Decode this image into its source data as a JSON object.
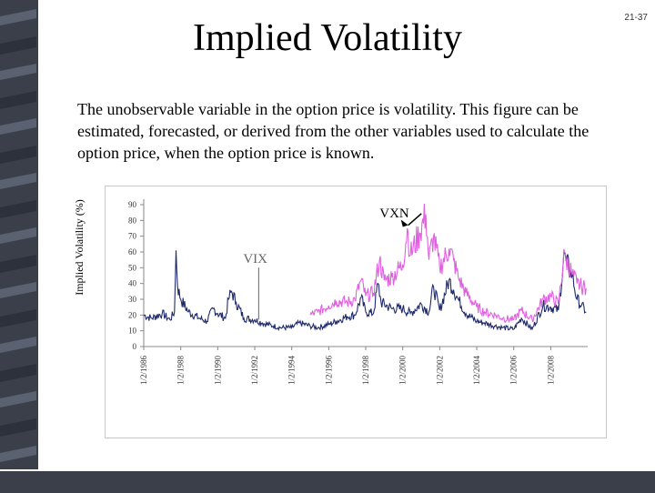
{
  "slide_number": "21-37",
  "title": "Implied Volatility",
  "body_text": "The unobservable variable in the option price is volatility. This figure can be estimated, forecasted, or derived from the other variables used to calculate the option price, when the option price is known.",
  "colors": {
    "sidebar": "#3a3f4a",
    "vix": "#1f2a6b",
    "vxn": "#e060e0"
  },
  "chart_data": {
    "type": "line",
    "title": "",
    "xlabel": "",
    "ylabel": "Implied Volatility (%)",
    "ylim": [
      0,
      90
    ],
    "yticks": [
      0,
      10,
      20,
      30,
      40,
      50,
      60,
      70,
      80,
      90
    ],
    "xlim": [
      "1986-01-02",
      "2009-12-31"
    ],
    "xticks": [
      "1/2/1986",
      "1/2/1988",
      "1/2/1990",
      "1/2/1992",
      "1/2/1994",
      "1/2/1996",
      "1/2/1998",
      "1/2/2000",
      "1/2/2002",
      "1/2/2004",
      "1/2/2006",
      "1/2/2008"
    ],
    "grid": false,
    "legend": "none",
    "annotations": [
      {
        "text": "VIX",
        "x": "1992-03",
        "y": 53
      },
      {
        "text": "VXN",
        "x": "1998-10",
        "y": 82
      }
    ],
    "series": [
      {
        "name": "VIX",
        "points": [
          [
            "1986-01",
            20
          ],
          [
            "1986-06",
            18
          ],
          [
            "1987-01",
            21
          ],
          [
            "1987-06",
            17
          ],
          [
            "1987-09",
            22
          ],
          [
            "1987-10",
            61
          ],
          [
            "1987-11",
            38
          ],
          [
            "1988-01",
            30
          ],
          [
            "1988-06",
            22
          ],
          [
            "1989-01",
            18
          ],
          [
            "1989-06",
            16
          ],
          [
            "1989-10",
            24
          ],
          [
            "1990-01",
            21
          ],
          [
            "1990-06",
            18
          ],
          [
            "1990-08",
            30
          ],
          [
            "1990-10",
            35
          ],
          [
            "1991-01",
            28
          ],
          [
            "1991-06",
            18
          ],
          [
            "1992-01",
            17
          ],
          [
            "1992-06",
            15
          ],
          [
            "1993-01",
            13
          ],
          [
            "1993-06",
            12
          ],
          [
            "1994-01",
            12
          ],
          [
            "1994-06",
            15
          ],
          [
            "1995-01",
            13
          ],
          [
            "1995-06",
            12
          ],
          [
            "1996-01",
            14
          ],
          [
            "1996-06",
            16
          ],
          [
            "1997-01",
            19
          ],
          [
            "1997-06",
            20
          ],
          [
            "1997-10",
            31
          ],
          [
            "1998-01",
            22
          ],
          [
            "1998-06",
            21
          ],
          [
            "1998-09",
            40
          ],
          [
            "1998-11",
            28
          ],
          [
            "1999-06",
            24
          ],
          [
            "2000-01",
            24
          ],
          [
            "2000-06",
            21
          ],
          [
            "2001-01",
            27
          ],
          [
            "2001-06",
            22
          ],
          [
            "2001-09",
            38
          ],
          [
            "2002-01",
            23
          ],
          [
            "2002-07",
            42
          ],
          [
            "2002-10",
            36
          ],
          [
            "2003-01",
            30
          ],
          [
            "2003-06",
            21
          ],
          [
            "2004-01",
            16
          ],
          [
            "2004-06",
            15
          ],
          [
            "2005-01",
            13
          ],
          [
            "2005-06",
            12
          ],
          [
            "2006-01",
            11
          ],
          [
            "2006-06",
            18
          ],
          [
            "2007-01",
            11
          ],
          [
            "2007-08",
            26
          ],
          [
            "2008-01",
            25
          ],
          [
            "2008-06",
            23
          ],
          [
            "2008-10",
            60
          ],
          [
            "2008-11",
            54
          ],
          [
            "2009-03",
            45
          ],
          [
            "2009-06",
            30
          ],
          [
            "2009-09",
            26
          ],
          [
            "2009-12",
            22
          ]
        ]
      },
      {
        "name": "VXN",
        "points": [
          [
            "1995-01",
            20
          ],
          [
            "1995-06",
            22
          ],
          [
            "1996-01",
            26
          ],
          [
            "1996-06",
            29
          ],
          [
            "1997-01",
            28
          ],
          [
            "1997-06",
            30
          ],
          [
            "1997-10",
            42
          ],
          [
            "1998-01",
            32
          ],
          [
            "1998-06",
            34
          ],
          [
            "1998-10",
            55
          ],
          [
            "1999-01",
            42
          ],
          [
            "1999-06",
            44
          ],
          [
            "2000-01",
            52
          ],
          [
            "2000-04",
            75
          ],
          [
            "2000-06",
            58
          ],
          [
            "2000-12",
            72
          ],
          [
            "2001-04",
            84
          ],
          [
            "2001-06",
            55
          ],
          [
            "2001-09",
            70
          ],
          [
            "2002-01",
            50
          ],
          [
            "2002-07",
            62
          ],
          [
            "2002-10",
            55
          ],
          [
            "2003-01",
            44
          ],
          [
            "2003-06",
            34
          ],
          [
            "2004-01",
            25
          ],
          [
            "2004-06",
            22
          ],
          [
            "2005-01",
            20
          ],
          [
            "2005-06",
            18
          ],
          [
            "2006-01",
            17
          ],
          [
            "2006-06",
            23
          ],
          [
            "2007-01",
            17
          ],
          [
            "2007-08",
            30
          ],
          [
            "2008-01",
            32
          ],
          [
            "2008-06",
            27
          ],
          [
            "2008-10",
            60
          ],
          [
            "2008-11",
            55
          ],
          [
            "2009-03",
            46
          ],
          [
            "2009-06",
            40
          ],
          [
            "2009-09",
            38
          ],
          [
            "2009-12",
            37
          ]
        ]
      }
    ]
  }
}
